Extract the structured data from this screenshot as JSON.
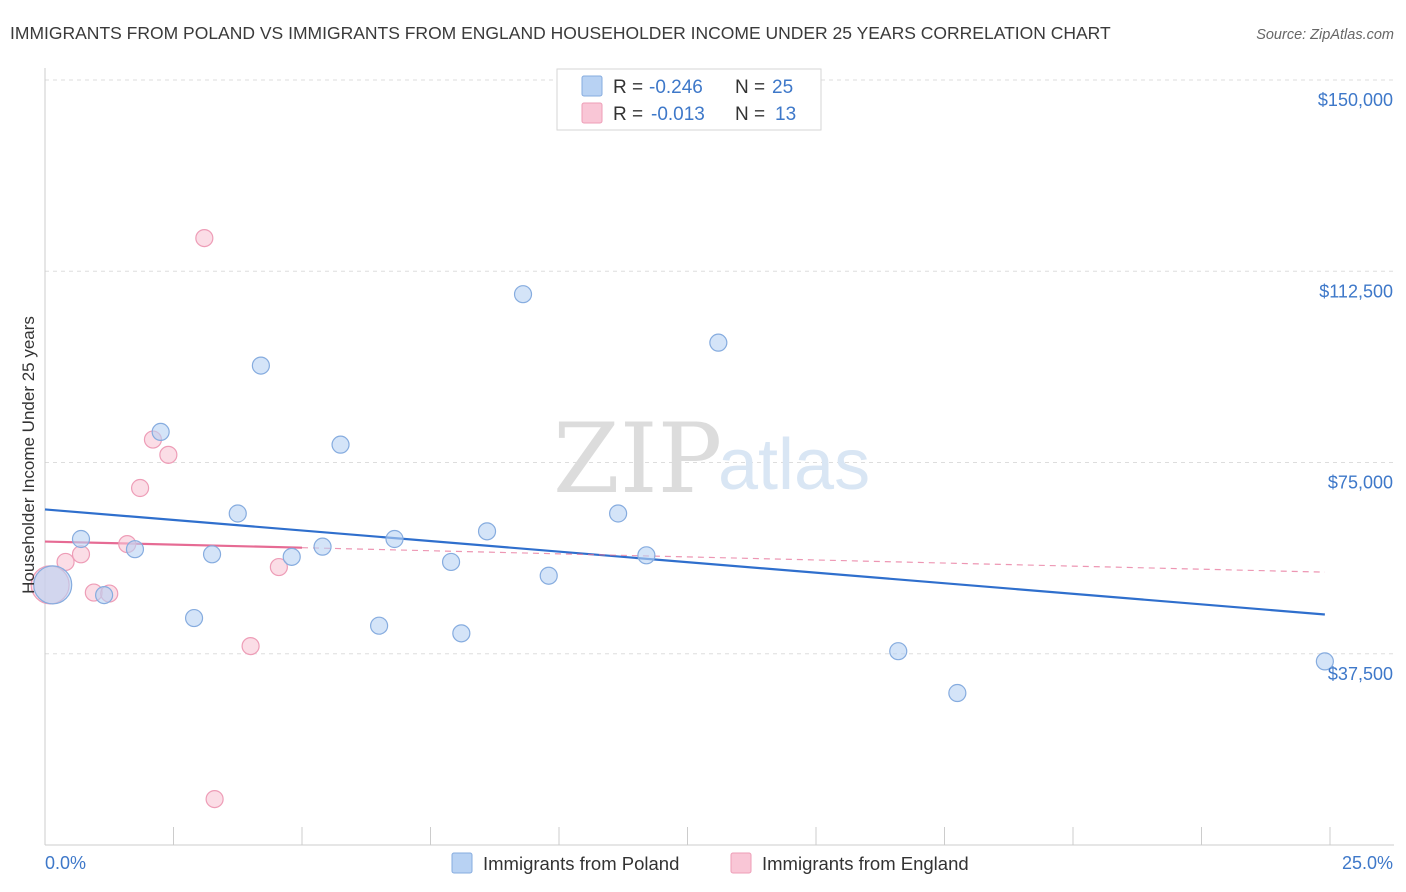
{
  "header": {
    "title": "IMMIGRANTS FROM POLAND VS IMMIGRANTS FROM ENGLAND HOUSEHOLDER INCOME UNDER 25 YEARS CORRELATION CHART",
    "source": "Source: ZipAtlas.com"
  },
  "watermark": {
    "zip": "ZIP",
    "atlas": "atlas"
  },
  "legend": {
    "r_label": "R =",
    "n_label": "N =",
    "rows": [
      {
        "r": "-0.246",
        "n": "25"
      },
      {
        "r": "-0.013",
        "n": "13"
      }
    ]
  },
  "colors": {
    "poland_fill": "#b8d2f3",
    "poland_stroke": "#86acdf",
    "poland_line": "#2f6fcd",
    "england_fill": "#f9c6d6",
    "england_stroke": "#ee9db7",
    "england_line": "#e66b94",
    "grid": "#dddddd",
    "axis_text": "#3e78c9"
  },
  "chart_data": {
    "type": "scatter",
    "title": "IMMIGRANTS FROM POLAND VS IMMIGRANTS FROM ENGLAND HOUSEHOLDER INCOME UNDER 25 YEARS CORRELATION CHART",
    "xlabel": "",
    "ylabel": "Householder Income Under 25 years",
    "xlim": [
      0,
      25
    ],
    "ylim": [
      0,
      150000
    ],
    "x_tick_labels": [
      "0.0%",
      "25.0%"
    ],
    "y_ticks": [
      37500,
      75000,
      112500,
      150000
    ],
    "y_tick_labels": [
      "$37,500",
      "$75,000",
      "$112,500",
      "$150,000"
    ],
    "grid": true,
    "legend_position": "bottom",
    "series": [
      {
        "name": "Immigrants from Poland",
        "points": [
          {
            "x": 0.15,
            "y": 51000,
            "big": true
          },
          {
            "x": 0.7,
            "y": 60000
          },
          {
            "x": 1.15,
            "y": 49000
          },
          {
            "x": 1.75,
            "y": 58000
          },
          {
            "x": 2.25,
            "y": 81000
          },
          {
            "x": 2.9,
            "y": 44500
          },
          {
            "x": 3.25,
            "y": 57000
          },
          {
            "x": 3.75,
            "y": 65000
          },
          {
            "x": 4.2,
            "y": 94000
          },
          {
            "x": 4.8,
            "y": 56500
          },
          {
            "x": 5.4,
            "y": 58500
          },
          {
            "x": 5.75,
            "y": 78500
          },
          {
            "x": 6.5,
            "y": 43000
          },
          {
            "x": 6.8,
            "y": 60000
          },
          {
            "x": 7.9,
            "y": 55500
          },
          {
            "x": 8.1,
            "y": 41500
          },
          {
            "x": 8.6,
            "y": 61500
          },
          {
            "x": 9.3,
            "y": 108000
          },
          {
            "x": 9.8,
            "y": 52800
          },
          {
            "x": 11.15,
            "y": 65000
          },
          {
            "x": 11.7,
            "y": 56800
          },
          {
            "x": 13.1,
            "y": 98500
          },
          {
            "x": 16.6,
            "y": 38000
          },
          {
            "x": 17.75,
            "y": 29800
          },
          {
            "x": 24.9,
            "y": 36000
          }
        ],
        "trend": {
          "x": [
            0,
            24.9
          ],
          "y": [
            65800,
            45200
          ]
        }
      },
      {
        "name": "Immigrants from England",
        "points": [
          {
            "x": 0.1,
            "y": 51000,
            "big": true
          },
          {
            "x": 0.4,
            "y": 55500
          },
          {
            "x": 0.7,
            "y": 57000
          },
          {
            "x": 0.95,
            "y": 49500
          },
          {
            "x": 1.25,
            "y": 49300
          },
          {
            "x": 1.6,
            "y": 59000
          },
          {
            "x": 1.85,
            "y": 70000
          },
          {
            "x": 2.1,
            "y": 79500
          },
          {
            "x": 2.4,
            "y": 76500
          },
          {
            "x": 3.1,
            "y": 119000
          },
          {
            "x": 3.3,
            "y": 9000
          },
          {
            "x": 4.0,
            "y": 39000
          },
          {
            "x": 4.55,
            "y": 54500
          }
        ],
        "trend": {
          "x": [
            0,
            5.0
          ],
          "y": [
            59500,
            58300
          ]
        },
        "trend_extension": {
          "x": [
            5.0,
            24.9
          ],
          "y": [
            58300,
            53500
          ]
        }
      }
    ]
  }
}
